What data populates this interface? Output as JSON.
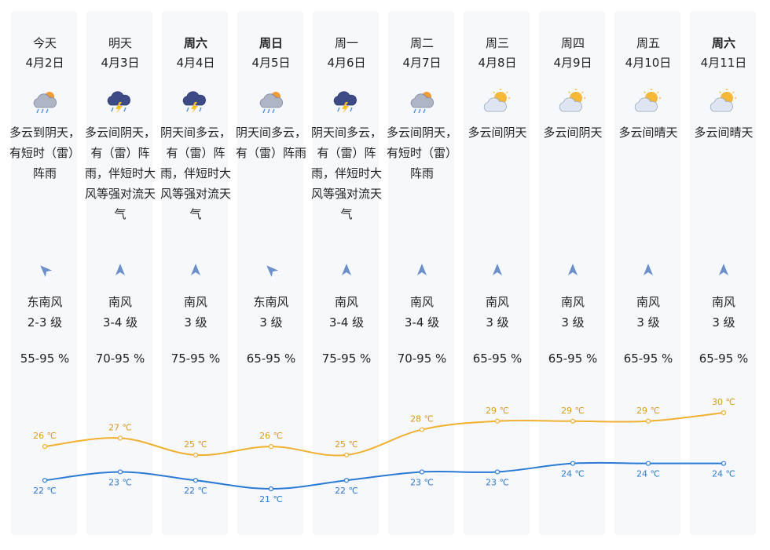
{
  "forecast": [
    {
      "day": "今天",
      "date": "4月2日",
      "icon": "cloudy-to-overcast-icon",
      "desc": "多云到阴天，有短时（雷）阵雨",
      "wind_dir": "东南风",
      "wind_level": "2-3 级",
      "wind_arrow": "southeast-wind-arrow-icon",
      "humidity": "55-95 %",
      "high": "26 ℃",
      "low": "22 ℃",
      "bold": false
    },
    {
      "day": "明天",
      "date": "4月3日",
      "icon": "thunderstorm-icon",
      "desc": "多云间阴天，有（雷）阵雨，伴短时大风等强对流天气",
      "wind_dir": "南风",
      "wind_level": "3-4 级",
      "wind_arrow": "south-wind-arrow-icon",
      "humidity": "70-95 %",
      "high": "27 ℃",
      "low": "23 ℃",
      "bold": false
    },
    {
      "day": "周六",
      "date": "4月4日",
      "icon": "thunderstorm-icon",
      "desc": "阴天间多云，有（雷）阵雨，伴短时大风等强对流天气",
      "wind_dir": "南风",
      "wind_level": "3 级",
      "wind_arrow": "south-wind-arrow-icon",
      "humidity": "75-95 %",
      "high": "25 ℃",
      "low": "22 ℃",
      "bold": true
    },
    {
      "day": "周日",
      "date": "4月5日",
      "icon": "cloudy-to-overcast-icon",
      "desc": "阴天间多云，有（雷）阵雨",
      "wind_dir": "东南风",
      "wind_level": "3 级",
      "wind_arrow": "southeast-wind-arrow-icon",
      "humidity": "65-95 %",
      "high": "26 ℃",
      "low": "21 ℃",
      "bold": true
    },
    {
      "day": "周一",
      "date": "4月6日",
      "icon": "thunderstorm-icon",
      "desc": "阴天间多云，有（雷）阵雨，伴短时大风等强对流天气",
      "wind_dir": "南风",
      "wind_level": "3-4 级",
      "wind_arrow": "south-wind-arrow-icon",
      "humidity": "75-95 %",
      "high": "25 ℃",
      "low": "22 ℃",
      "bold": false
    },
    {
      "day": "周二",
      "date": "4月7日",
      "icon": "cloudy-to-overcast-icon",
      "desc": "多云间阴天，有短时（雷）阵雨",
      "wind_dir": "南风",
      "wind_level": "3-4 级",
      "wind_arrow": "south-wind-arrow-icon",
      "humidity": "70-95 %",
      "high": "28 ℃",
      "low": "23 ℃",
      "bold": false
    },
    {
      "day": "周三",
      "date": "4月8日",
      "icon": "partly-cloudy-icon",
      "desc": "多云间阴天",
      "wind_dir": "南风",
      "wind_level": "3 级",
      "wind_arrow": "south-wind-arrow-icon",
      "humidity": "65-95 %",
      "high": "29 ℃",
      "low": "23 ℃",
      "bold": false
    },
    {
      "day": "周四",
      "date": "4月9日",
      "icon": "partly-cloudy-icon",
      "desc": "多云间阴天",
      "wind_dir": "南风",
      "wind_level": "3 级",
      "wind_arrow": "south-wind-arrow-icon",
      "humidity": "65-95 %",
      "high": "29 ℃",
      "low": "24 ℃",
      "bold": false
    },
    {
      "day": "周五",
      "date": "4月10日",
      "icon": "partly-cloudy-icon",
      "desc": "多云间晴天",
      "wind_dir": "南风",
      "wind_level": "3 级",
      "wind_arrow": "south-wind-arrow-icon",
      "humidity": "65-95 %",
      "high": "29 ℃",
      "low": "24 ℃",
      "bold": false
    },
    {
      "day": "周六",
      "date": "4月11日",
      "icon": "partly-cloudy-icon",
      "desc": "多云间晴天",
      "wind_dir": "南风",
      "wind_level": "3 级",
      "wind_arrow": "south-wind-arrow-icon",
      "humidity": "65-95 %",
      "high": "30 ℃",
      "low": "24 ℃",
      "bold": true
    }
  ],
  "chart_data": {
    "type": "line",
    "categories": [
      "4月2日",
      "4月3日",
      "4月4日",
      "4月5日",
      "4月6日",
      "4月7日",
      "4月8日",
      "4月9日",
      "4月10日",
      "4月11日"
    ],
    "series": [
      {
        "values": [
          26,
          27,
          25,
          26,
          25,
          28,
          29,
          29,
          29,
          30
        ],
        "color": "#f0b030"
      },
      {
        "values": [
          22,
          23,
          22,
          21,
          22,
          23,
          23,
          24,
          24,
          24
        ],
        "color": "#2a7ad4"
      }
    ],
    "unit": "℃"
  }
}
